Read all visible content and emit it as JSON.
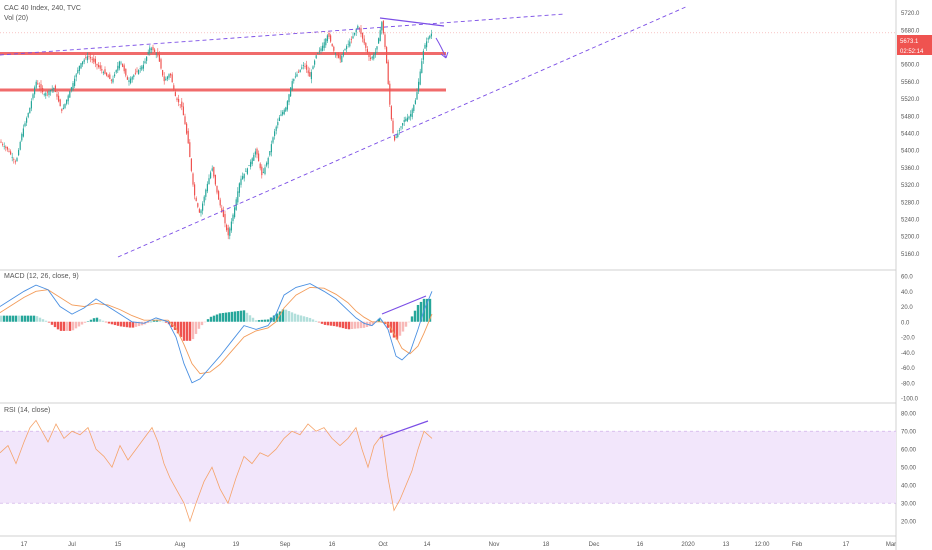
{
  "header": {
    "symbol": "CAC 40 Index, 240, TVC",
    "volume": "Vol (20)"
  },
  "colors": {
    "up": "#26a69a",
    "down": "#ef5350",
    "trend": "#7b4ee6",
    "level": "#f06b6b",
    "macd": "#4a90e2",
    "signal": "#f39c5a",
    "rsi": "#f5a36a",
    "rsi_band": "#f2e6fb"
  },
  "chart_data": [
    {
      "type": "candlestick",
      "title": "CAC 40 Index, 240, TVC",
      "y_ticks": [
        "5720.0",
        "5680.0",
        "5640.0",
        "5600.0",
        "5560.0",
        "5520.0",
        "5480.0",
        "5440.0",
        "5400.0",
        "5360.0",
        "5320.0",
        "5280.0",
        "5240.0",
        "5200.0",
        "5160.0"
      ],
      "ylim": [
        5140,
        5740
      ],
      "x_ticks": [
        "17",
        "Jul",
        "15",
        "Aug",
        "19",
        "Sep",
        "16",
        "Oct",
        "14",
        "Nov",
        "18",
        "Dec",
        "16",
        "2020",
        "13",
        "12:00",
        "Feb",
        "17",
        "Mar"
      ],
      "last_price": "5673.1",
      "countdown": "02:52:14",
      "horizontal_levels": [
        5625,
        5540
      ],
      "path": [
        [
          0,
          5420
        ],
        [
          8,
          5400
        ],
        [
          16,
          5370
        ],
        [
          22,
          5440
        ],
        [
          30,
          5500
        ],
        [
          36,
          5560
        ],
        [
          44,
          5530
        ],
        [
          54,
          5545
        ],
        [
          62,
          5490
        ],
        [
          72,
          5550
        ],
        [
          80,
          5600
        ],
        [
          88,
          5620
        ],
        [
          96,
          5600
        ],
        [
          104,
          5580
        ],
        [
          112,
          5560
        ],
        [
          120,
          5610
        ],
        [
          128,
          5560
        ],
        [
          136,
          5580
        ],
        [
          144,
          5600
        ],
        [
          150,
          5640
        ],
        [
          158,
          5620
        ],
        [
          164,
          5560
        ],
        [
          170,
          5580
        ],
        [
          176,
          5520
        ],
        [
          182,
          5500
        ],
        [
          188,
          5420
        ],
        [
          194,
          5300
        ],
        [
          200,
          5250
        ],
        [
          206,
          5310
        ],
        [
          212,
          5360
        ],
        [
          218,
          5290
        ],
        [
          224,
          5240
        ],
        [
          228,
          5200
        ],
        [
          234,
          5260
        ],
        [
          240,
          5330
        ],
        [
          248,
          5360
        ],
        [
          256,
          5400
        ],
        [
          262,
          5340
        ],
        [
          268,
          5380
        ],
        [
          274,
          5440
        ],
        [
          280,
          5480
        ],
        [
          286,
          5500
        ],
        [
          292,
          5560
        ],
        [
          298,
          5580
        ],
        [
          304,
          5600
        ],
        [
          310,
          5570
        ],
        [
          316,
          5620
        ],
        [
          322,
          5640
        ],
        [
          328,
          5670
        ],
        [
          334,
          5630
        ],
        [
          340,
          5610
        ],
        [
          346,
          5640
        ],
        [
          352,
          5660
        ],
        [
          358,
          5690
        ],
        [
          364,
          5650
        ],
        [
          370,
          5610
        ],
        [
          376,
          5630
        ],
        [
          382,
          5700
        ],
        [
          386,
          5620
        ],
        [
          390,
          5500
        ],
        [
          394,
          5420
        ],
        [
          398,
          5440
        ],
        [
          404,
          5470
        ],
        [
          410,
          5480
        ],
        [
          416,
          5520
        ],
        [
          420,
          5580
        ],
        [
          424,
          5640
        ],
        [
          428,
          5660
        ],
        [
          432,
          5673
        ]
      ]
    },
    {
      "type": "line",
      "title": "MACD (12, 26, close, 9)",
      "y_ticks": [
        "60.0",
        "40.0",
        "20.0",
        "0.0",
        "-20.0",
        "-40.0",
        "-60.0",
        "-80.0",
        "-100.0"
      ],
      "ylim": [
        -100,
        60
      ],
      "macd_path": [
        [
          0,
          20
        ],
        [
          12,
          30
        ],
        [
          24,
          40
        ],
        [
          36,
          48
        ],
        [
          48,
          42
        ],
        [
          60,
          20
        ],
        [
          72,
          10
        ],
        [
          84,
          18
        ],
        [
          96,
          30
        ],
        [
          108,
          20
        ],
        [
          120,
          10
        ],
        [
          132,
          0
        ],
        [
          144,
          -2
        ],
        [
          156,
          5
        ],
        [
          168,
          0
        ],
        [
          176,
          -20
        ],
        [
          184,
          -55
        ],
        [
          192,
          -80
        ],
        [
          200,
          -75
        ],
        [
          210,
          -60
        ],
        [
          220,
          -45
        ],
        [
          232,
          -25
        ],
        [
          244,
          -5
        ],
        [
          256,
          -10
        ],
        [
          268,
          -5
        ],
        [
          276,
          10
        ],
        [
          284,
          35
        ],
        [
          296,
          45
        ],
        [
          310,
          50
        ],
        [
          324,
          40
        ],
        [
          336,
          30
        ],
        [
          348,
          15
        ],
        [
          356,
          5
        ],
        [
          364,
          -2
        ],
        [
          372,
          -5
        ],
        [
          380,
          5
        ],
        [
          388,
          -10
        ],
        [
          396,
          -45
        ],
        [
          402,
          -50
        ],
        [
          410,
          -40
        ],
        [
          418,
          -10
        ],
        [
          424,
          15
        ],
        [
          432,
          40
        ]
      ],
      "signal_path": [
        [
          0,
          12
        ],
        [
          12,
          22
        ],
        [
          24,
          32
        ],
        [
          36,
          40
        ],
        [
          48,
          42
        ],
        [
          60,
          32
        ],
        [
          72,
          22
        ],
        [
          84,
          20
        ],
        [
          96,
          24
        ],
        [
          108,
          22
        ],
        [
          120,
          16
        ],
        [
          132,
          8
        ],
        [
          144,
          2
        ],
        [
          156,
          2
        ],
        [
          168,
          2
        ],
        [
          176,
          -8
        ],
        [
          184,
          -30
        ],
        [
          192,
          -55
        ],
        [
          200,
          -68
        ],
        [
          210,
          -66
        ],
        [
          220,
          -56
        ],
        [
          232,
          -38
        ],
        [
          244,
          -20
        ],
        [
          256,
          -12
        ],
        [
          268,
          -8
        ],
        [
          276,
          0
        ],
        [
          284,
          18
        ],
        [
          296,
          35
        ],
        [
          310,
          45
        ],
        [
          324,
          44
        ],
        [
          336,
          36
        ],
        [
          348,
          25
        ],
        [
          356,
          14
        ],
        [
          364,
          6
        ],
        [
          372,
          0
        ],
        [
          380,
          0
        ],
        [
          388,
          -2
        ],
        [
          396,
          -20
        ],
        [
          402,
          -35
        ],
        [
          410,
          -42
        ],
        [
          418,
          -32
        ],
        [
          424,
          -15
        ],
        [
          432,
          10
        ]
      ]
    },
    {
      "type": "line",
      "title": "RSI (14, close)",
      "y_ticks": [
        "80.00",
        "70.00",
        "60.00",
        "50.00",
        "40.00",
        "30.00",
        "20.00"
      ],
      "ylim": [
        14,
        84
      ],
      "band": [
        30,
        70
      ],
      "path": [
        [
          0,
          58
        ],
        [
          8,
          62
        ],
        [
          16,
          52
        ],
        [
          24,
          64
        ],
        [
          30,
          72
        ],
        [
          36,
          76
        ],
        [
          42,
          70
        ],
        [
          48,
          64
        ],
        [
          56,
          74
        ],
        [
          64,
          66
        ],
        [
          72,
          70
        ],
        [
          80,
          68
        ],
        [
          88,
          72
        ],
        [
          96,
          60
        ],
        [
          104,
          56
        ],
        [
          112,
          50
        ],
        [
          120,
          62
        ],
        [
          128,
          54
        ],
        [
          136,
          60
        ],
        [
          144,
          66
        ],
        [
          152,
          72
        ],
        [
          158,
          64
        ],
        [
          164,
          52
        ],
        [
          170,
          44
        ],
        [
          176,
          38
        ],
        [
          184,
          30
        ],
        [
          190,
          20
        ],
        [
          196,
          30
        ],
        [
          204,
          42
        ],
        [
          212,
          50
        ],
        [
          220,
          38
        ],
        [
          228,
          30
        ],
        [
          236,
          44
        ],
        [
          244,
          56
        ],
        [
          252,
          52
        ],
        [
          260,
          58
        ],
        [
          268,
          56
        ],
        [
          276,
          60
        ],
        [
          284,
          66
        ],
        [
          292,
          70
        ],
        [
          300,
          68
        ],
        [
          308,
          74
        ],
        [
          316,
          70
        ],
        [
          324,
          72
        ],
        [
          332,
          66
        ],
        [
          340,
          62
        ],
        [
          348,
          66
        ],
        [
          356,
          72
        ],
        [
          362,
          60
        ],
        [
          368,
          50
        ],
        [
          374,
          62
        ],
        [
          382,
          68
        ],
        [
          388,
          44
        ],
        [
          394,
          26
        ],
        [
          400,
          32
        ],
        [
          406,
          40
        ],
        [
          412,
          48
        ],
        [
          418,
          60
        ],
        [
          424,
          70
        ],
        [
          432,
          66
        ]
      ]
    }
  ]
}
